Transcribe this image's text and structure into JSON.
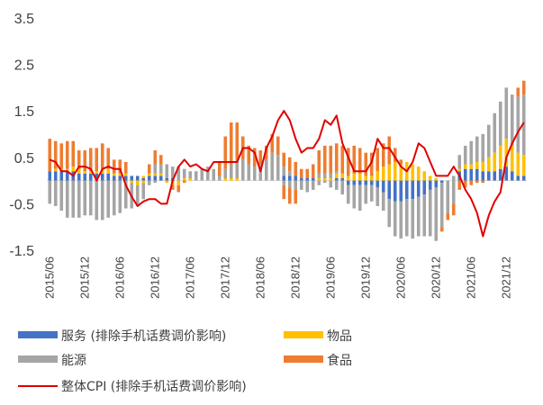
{
  "chart_data": {
    "type": "bar",
    "stacked": true,
    "x": [
      "2015/06",
      "2015/07",
      "2015/08",
      "2015/09",
      "2015/10",
      "2015/11",
      "2015/12",
      "2016/01",
      "2016/02",
      "2016/03",
      "2016/04",
      "2016/05",
      "2016/06",
      "2016/07",
      "2016/08",
      "2016/09",
      "2016/10",
      "2016/11",
      "2016/12",
      "2017/01",
      "2017/02",
      "2017/03",
      "2017/04",
      "2017/05",
      "2017/06",
      "2017/07",
      "2017/08",
      "2017/09",
      "2017/10",
      "2017/11",
      "2017/12",
      "2018/01",
      "2018/02",
      "2018/03",
      "2018/04",
      "2018/05",
      "2018/06",
      "2018/07",
      "2018/08",
      "2018/09",
      "2018/10",
      "2018/11",
      "2018/12",
      "2019/01",
      "2019/02",
      "2019/03",
      "2019/04",
      "2019/05",
      "2019/06",
      "2019/07",
      "2019/08",
      "2019/09",
      "2019/10",
      "2019/11",
      "2019/12",
      "2020/01",
      "2020/02",
      "2020/03",
      "2020/04",
      "2020/05",
      "2020/06",
      "2020/07",
      "2020/08",
      "2020/09",
      "2020/10",
      "2020/11",
      "2020/12",
      "2021/01",
      "2021/02",
      "2021/03",
      "2021/04",
      "2021/05",
      "2021/06",
      "2021/07",
      "2021/08",
      "2021/09",
      "2021/10",
      "2021/11",
      "2021/12",
      "2022/01",
      "2022/02",
      "2022/03"
    ],
    "x_tick_labels": [
      "2015/06",
      "2015/12",
      "2016/06",
      "2016/12",
      "2017/06",
      "2017/12",
      "2018/06",
      "2018/12",
      "2019/06",
      "2019/12",
      "2020/06",
      "2020/12",
      "2021/06",
      "2021/12"
    ],
    "x_tick_step": 6,
    "series": [
      {
        "name": "服务 (排除手机话费调价影响)",
        "kind": "bar",
        "color": "#4472C4",
        "values": [
          0.2,
          0.2,
          0.2,
          0.2,
          0.2,
          0.15,
          0.15,
          0.15,
          0.15,
          0.15,
          0.15,
          0.1,
          0.1,
          0.1,
          0.1,
          0.1,
          0.05,
          0.1,
          0.1,
          0.1,
          0.05,
          0.05,
          0.0,
          0.0,
          0.0,
          0.0,
          0.0,
          0.0,
          0.0,
          0.0,
          0.0,
          0.0,
          0.0,
          0.0,
          0.0,
          0.0,
          0.0,
          0.0,
          0.0,
          0.0,
          0.1,
          0.1,
          0.1,
          0.05,
          0.05,
          0.05,
          0.0,
          0.0,
          0.0,
          0.05,
          0.05,
          0.0,
          0.0,
          0.0,
          0.0,
          0.0,
          0.0,
          0.0,
          0.0,
          0.0,
          0.0,
          0.0,
          0.0,
          0.0,
          0.0,
          0.0,
          0.0,
          0.0,
          0.0,
          0.0,
          0.2,
          0.25,
          0.25,
          0.25,
          0.2,
          0.2,
          0.2,
          0.25,
          0.3,
          0.2,
          0.1,
          0.1
        ],
        "negative_values": [
          0,
          0,
          0,
          0,
          0,
          0,
          0,
          0,
          0,
          0,
          0,
          0,
          0,
          0,
          0,
          0,
          0,
          0,
          0,
          0,
          0,
          0,
          0,
          0,
          0,
          0,
          0,
          0,
          0,
          0,
          0,
          0,
          0,
          0,
          0,
          0,
          0,
          0,
          0,
          0,
          0,
          0,
          0,
          0,
          0,
          0,
          0,
          0,
          0,
          0,
          0,
          -0.1,
          -0.1,
          -0.1,
          -0.1,
          -0.1,
          -0.15,
          -0.25,
          -0.4,
          -0.45,
          -0.45,
          -0.4,
          -0.4,
          -0.35,
          -0.3,
          -0.2,
          -0.15,
          -0.05,
          0,
          0,
          0,
          0,
          0,
          0,
          0,
          0,
          0,
          0,
          0,
          0,
          0,
          0
        ]
      },
      {
        "name": "物品",
        "kind": "bar",
        "color": "#FFC000",
        "values": [
          0.0,
          0.05,
          0.05,
          0.05,
          0.1,
          0.1,
          0.05,
          0.05,
          0.05,
          0.1,
          0.1,
          0.05,
          0.05,
          0.05,
          0.0,
          0.0,
          0.05,
          0.05,
          0.05,
          0.05,
          0.0,
          0.0,
          0.0,
          0.05,
          0.05,
          0.0,
          0.0,
          0.0,
          0.0,
          0.0,
          0.05,
          0.05,
          0.05,
          0.0,
          0.0,
          0.0,
          0.0,
          0.0,
          0.0,
          0.0,
          0.0,
          0.0,
          0.0,
          0.0,
          0.0,
          0.0,
          0.05,
          0.05,
          0.05,
          0.1,
          0.1,
          0.1,
          0.15,
          0.15,
          0.1,
          0.1,
          0.2,
          0.3,
          0.35,
          0.4,
          0.35,
          0.4,
          0.35,
          0.3,
          0.2,
          0.1,
          0.05,
          0.0,
          0.0,
          0.0,
          0.05,
          0.1,
          0.1,
          0.15,
          0.2,
          0.3,
          0.4,
          0.5,
          0.6,
          0.55,
          0.5,
          0.45
        ],
        "negative_values": [
          0,
          0,
          0,
          0,
          0,
          0,
          0,
          0,
          0,
          0,
          0,
          0,
          0,
          0,
          -0.05,
          -0.1,
          -0.05,
          0,
          0,
          0,
          -0.05,
          -0.1,
          -0.1,
          0,
          0,
          0,
          0,
          0,
          0,
          0,
          0,
          0,
          0,
          0,
          0,
          0,
          0,
          0,
          0,
          0,
          0,
          0,
          0,
          0,
          0,
          0,
          0,
          0,
          0,
          0,
          0,
          0,
          0,
          0,
          0,
          0,
          0,
          0,
          0,
          0,
          0,
          0,
          0,
          0,
          0,
          0,
          0,
          0,
          0,
          0,
          0,
          0,
          0,
          0,
          0,
          0,
          0,
          0,
          0,
          0,
          0,
          0
        ]
      },
      {
        "name": "能源",
        "kind": "bar",
        "color": "#A5A5A5",
        "values": [
          0,
          0,
          0,
          0,
          0,
          0,
          0,
          0,
          0,
          0,
          0,
          0,
          0,
          0,
          0,
          0,
          0,
          0,
          0.2,
          0.2,
          0.3,
          0.25,
          0.3,
          0.2,
          0.15,
          0.2,
          0.25,
          0.3,
          0.25,
          0.1,
          0.2,
          0.3,
          0.4,
          0.45,
          0.35,
          0.3,
          0.35,
          0.45,
          0.6,
          0.55,
          0.2,
          0.1,
          0.0,
          0.0,
          0.0,
          0.0,
          0.1,
          0.1,
          0.1,
          0.05,
          0.0,
          0.0,
          0.0,
          0.0,
          0.0,
          0.0,
          0.0,
          0.0,
          0.0,
          0.0,
          0.0,
          0.0,
          0.0,
          0.0,
          0.0,
          0.0,
          0.0,
          0.0,
          0.0,
          0.1,
          0.3,
          0.4,
          0.5,
          0.55,
          0.6,
          0.7,
          0.85,
          0.95,
          1.1,
          1.1,
          1.2,
          1.3
        ],
        "negative_values": [
          -0.5,
          -0.55,
          -0.65,
          -0.8,
          -0.8,
          -0.8,
          -0.75,
          -0.75,
          -0.85,
          -0.85,
          -0.8,
          -0.75,
          -0.7,
          -0.6,
          -0.55,
          -0.45,
          -0.35,
          -0.1,
          -0.05,
          0,
          0,
          0,
          0,
          0,
          0,
          0,
          0,
          0,
          0,
          0,
          0,
          0,
          0,
          0,
          0,
          0,
          0,
          0,
          0,
          0,
          -0.1,
          -0.15,
          -0.2,
          -0.2,
          -0.25,
          -0.2,
          -0.1,
          -0.05,
          -0.15,
          -0.2,
          -0.3,
          -0.4,
          -0.5,
          -0.55,
          -0.4,
          -0.35,
          -0.4,
          -0.4,
          -0.6,
          -0.75,
          -0.8,
          -0.8,
          -0.85,
          -0.85,
          -0.9,
          -1.0,
          -1.15,
          -0.95,
          -0.7,
          -0.5,
          0,
          0,
          0,
          0,
          0,
          0,
          0,
          0,
          0,
          0,
          0,
          0
        ]
      },
      {
        "name": "食品",
        "kind": "bar",
        "color": "#ED7D31",
        "values": [
          0.7,
          0.6,
          0.55,
          0.6,
          0.55,
          0.4,
          0.45,
          0.5,
          0.5,
          0.55,
          0.45,
          0.3,
          0.3,
          0.25,
          0.0,
          0.0,
          0.0,
          0.2,
          0.3,
          0.2,
          0.0,
          0.0,
          0.0,
          0.0,
          0.0,
          0.0,
          0.0,
          0.0,
          0.0,
          0.3,
          0.7,
          0.9,
          0.8,
          0.5,
          0.4,
          0.4,
          0.3,
          0.3,
          0.4,
          0.4,
          0.3,
          0.3,
          0.3,
          0.2,
          0.2,
          0.3,
          0.5,
          0.6,
          0.6,
          0.6,
          0.6,
          0.6,
          0.6,
          0.55,
          0.5,
          0.5,
          0.5,
          0.5,
          0.6,
          0.3,
          0.1,
          0.0,
          0.0,
          0.0,
          0.0,
          0.0,
          0.0,
          0.0,
          0.0,
          0.0,
          0.0,
          0.0,
          0.0,
          0.0,
          0.0,
          0.0,
          0.0,
          0.0,
          0.0,
          0.0,
          0.2,
          0.3
        ],
        "negative_values": [
          0,
          0,
          0,
          0,
          0,
          0,
          0,
          0,
          0,
          0,
          0,
          0,
          0,
          0,
          0,
          0,
          0,
          0,
          0,
          0,
          0,
          -0.1,
          -0.15,
          -0.05,
          0,
          0,
          0,
          0,
          0,
          0,
          0,
          0,
          0,
          0,
          0,
          0,
          0,
          0,
          0,
          0,
          -0.3,
          -0.35,
          -0.3,
          0,
          0,
          0,
          0,
          0,
          0,
          0,
          0,
          0,
          0,
          0,
          0,
          0,
          0,
          0,
          0,
          0,
          0,
          0,
          0,
          0,
          0,
          0,
          0,
          -0.1,
          -0.15,
          -0.25,
          -0.2,
          -0.15,
          -0.1,
          -0.05,
          -0.05,
          0,
          0,
          0,
          0,
          0,
          0,
          0
        ]
      },
      {
        "name": "整体CPI (排除手机话费调价影响)",
        "kind": "line",
        "color": "#E00000",
        "values": [
          0.45,
          0.4,
          0.2,
          0.2,
          0.1,
          0.3,
          0.3,
          0.25,
          0.0,
          0.25,
          0.3,
          0.25,
          0.25,
          -0.1,
          -0.35,
          -0.55,
          -0.45,
          -0.4,
          -0.4,
          -0.5,
          -0.5,
          0.0,
          0.3,
          0.45,
          0.3,
          0.35,
          0.25,
          0.2,
          0.4,
          0.4,
          0.4,
          0.4,
          0.4,
          0.7,
          0.7,
          0.6,
          0.2,
          0.7,
          0.95,
          1.3,
          1.5,
          1.3,
          0.9,
          0.6,
          0.7,
          0.7,
          0.9,
          1.3,
          1.2,
          1.4,
          0.8,
          0.5,
          0.2,
          0.2,
          0.2,
          0.4,
          0.9,
          0.7,
          0.7,
          0.5,
          0.3,
          0.2,
          0.4,
          0.8,
          0.7,
          0.4,
          0.1,
          0.1,
          0.1,
          0.3,
          0.1,
          -0.2,
          -0.4,
          -0.7,
          -1.2,
          -0.75,
          -0.45,
          -0.25,
          0.5,
          0.8,
          1.05,
          1.25
        ]
      }
    ],
    "cpi_line": [
      0.45,
      0.4,
      0.2,
      0.2,
      0.1,
      0.3,
      0.3,
      0.25,
      0.0,
      0.25,
      0.3,
      0.25,
      0.25,
      -0.1,
      -0.35,
      -0.55,
      -0.45,
      -0.4,
      -0.4,
      -0.5,
      -0.5,
      0.0,
      0.3,
      0.45,
      0.3,
      0.35,
      0.25,
      0.2,
      0.4,
      0.4,
      0.4,
      0.4,
      0.4,
      0.7,
      0.7,
      0.6,
      0.2,
      0.7,
      0.95,
      1.3,
      1.5,
      1.3,
      0.9,
      0.6,
      0.7,
      0.7,
      0.9,
      1.3,
      1.2,
      1.4,
      0.8,
      0.5,
      0.2,
      0.2,
      0.2,
      0.4,
      0.9,
      0.7,
      0.7,
      0.5,
      0.3,
      0.2,
      0.4,
      0.8,
      0.7,
      0.4,
      0.1,
      0.1,
      0.1,
      0.3,
      0.1,
      -0.2,
      -0.4,
      -0.7,
      -1.2,
      -0.75,
      -0.45,
      -0.25,
      0.5,
      0.8,
      1.05,
      1.25
    ],
    "y_ticks": [
      3.5,
      2.5,
      1.5,
      0.5,
      -0.5,
      -1.5
    ],
    "y_tick_labels": [
      "3.5",
      "2.5",
      "1.5",
      "0.5",
      "-0.5",
      "-1.5"
    ],
    "ylim": [
      -1.5,
      3.5
    ],
    "title": "",
    "xlabel": "",
    "ylabel": "",
    "grid": false,
    "legend_position": "bottom",
    "legend": [
      {
        "label": "服务 (排除手机话费调价影响)",
        "color": "#4472C4",
        "marker": "rect"
      },
      {
        "label": "物品",
        "color": "#FFC000",
        "marker": "rect"
      },
      {
        "label": "能源",
        "color": "#A5A5A5",
        "marker": "rect"
      },
      {
        "label": "食品",
        "color": "#ED7D31",
        "marker": "rect"
      },
      {
        "label": "整体CPI (排除手机话费调价影响)",
        "color": "#E00000",
        "marker": "line"
      }
    ]
  }
}
